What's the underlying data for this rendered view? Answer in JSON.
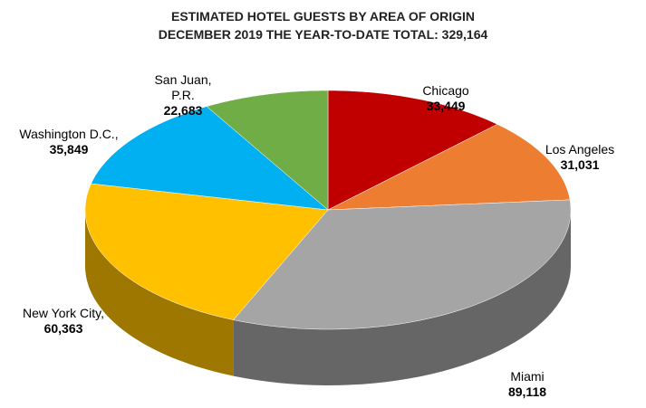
{
  "chart_data": {
    "type": "pie",
    "title": "ESTIMATED HOTEL GUESTS BY AREA OF ORIGIN",
    "subtitle": "DECEMBER 2019 THE YEAR-TO-DATE TOTAL: 329,164",
    "categories": [
      "Chicago",
      "Los Angeles",
      "Miami",
      "New York City,",
      "Washington D.C.,",
      "San Juan, P.R."
    ],
    "values": [
      33449,
      31031,
      89118,
      60363,
      35849,
      22683
    ],
    "value_labels": [
      "33,449",
      "31,031",
      "89,118",
      "60,363",
      "35,849",
      "22,683"
    ],
    "colors": [
      "#c00000",
      "#ed7d31",
      "#a5a5a5",
      "#ffc000",
      "#00b0f0",
      "#70ad47"
    ],
    "three_d": true
  }
}
